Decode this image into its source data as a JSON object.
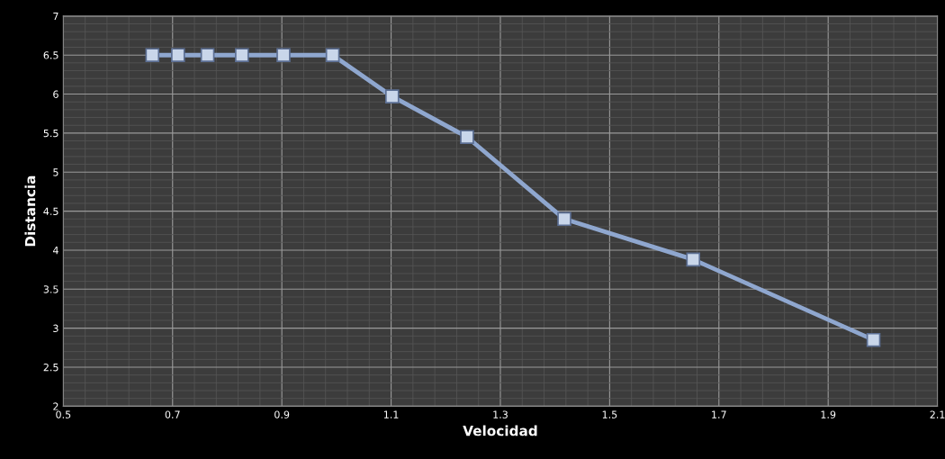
{
  "chart_data": {
    "type": "line",
    "xlabel": "Velocidad",
    "ylabel": "Distancia",
    "x": [
      0.663,
      0.71,
      0.764,
      0.827,
      0.903,
      0.993,
      1.102,
      1.239,
      1.417,
      1.653,
      1.983
    ],
    "series": [
      {
        "color": "#8fa7cf",
        "values": [
          6.5,
          6.5,
          6.5,
          6.5,
          6.5,
          6.5,
          5.97,
          5.45,
          4.4,
          3.88,
          2.85
        ]
      }
    ],
    "xlim": [
      0.5,
      2.1
    ],
    "xticks": [
      0.5,
      0.7,
      0.9,
      1.1,
      1.3,
      1.5,
      1.7,
      1.9,
      2.1
    ],
    "ylim": [
      2,
      7
    ],
    "yticks": [
      2,
      2.5,
      3,
      3.5,
      4,
      4.5,
      5,
      5.5,
      6,
      6.5,
      7
    ],
    "grid": true,
    "marker": "square",
    "line_style": "solid"
  }
}
